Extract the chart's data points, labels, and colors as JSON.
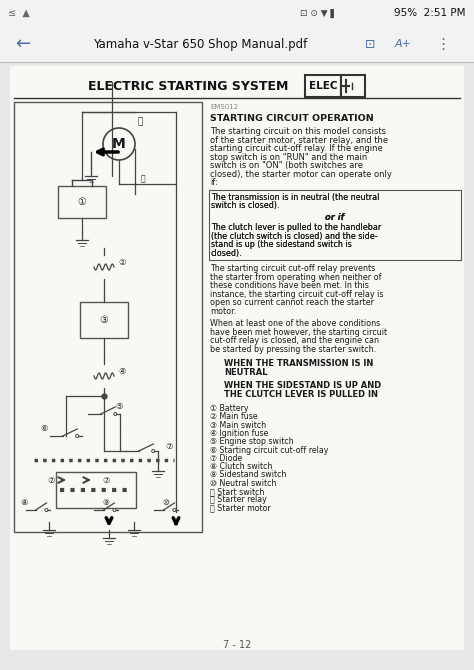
{
  "bg_color": "#e8e8e8",
  "status_bar_bg": "#f2f2f2",
  "status_bar_text": "95%  2:51 PM",
  "nav_bar_title": "Yamaha v-Star 650 Shop Manual.pdf",
  "page_bg": "#f9f9f7",
  "page_title": "ELECTRIC STARTING SYSTEM",
  "elec_box_text": "ELEC",
  "section_code": "EMS012",
  "section_title": "STARTING CIRCUIT OPERATION",
  "body_text_1": "The starting circuit on this model consists\nof the starter motor, starter relay, and the\nstarting circuit cut-off relay. If the engine\nstop switch is on \"RUN\" and the main\nswitch is on \"ON\" (both switches are\nclosed), the starter motor can operate only\nif:",
  "boxed_text_1": "The transmission is in neutral (the neutral\nswitch is closed).",
  "boxed_or_if": "or if",
  "boxed_text_2": "The clutch lever is pulled to the handlebar\n(the clutch switch is closed) and the side-\nstand is up (the sidestand switch is\nclosed).",
  "body_text_2": "The starting circuit cut-off relay prevents\nthe starter from operating when neither of\nthese conditions have been met. In this\ninstance, the starting circuit cut-off relay is\nopen so current cannot reach the starter\nmotor.",
  "body_text_3": "When at least one of the above conditions\nhave been met however, the starting circuit\ncut-off relay is closed, and the engine can\nbe started by pressing the starter switch.",
  "bold_text_1": "WHEN THE TRANSMISSION IS IN\nNEUTRAL",
  "bold_text_2": "WHEN THE SIDESTAND IS UP AND\nTHE CLUTCH LEVER IS PULLED IN",
  "legend": [
    "① Battery",
    "② Main fuse",
    "③ Main switch",
    "④ Ignition fuse",
    "⑤ Engine stop switch",
    "⑥ Starting circuit cut-off relay",
    "⑦ Diode",
    "⑧ Clutch switch",
    "⑨ Sidestand switch",
    "⑩ Neutral switch",
    "⑪ Start switch",
    "⑫ Starter relay",
    "⑬ Starter motor"
  ],
  "page_number": "7 - 12",
  "text_color": "#1a1a1a",
  "line_color": "#444444",
  "border_color": "#555555"
}
